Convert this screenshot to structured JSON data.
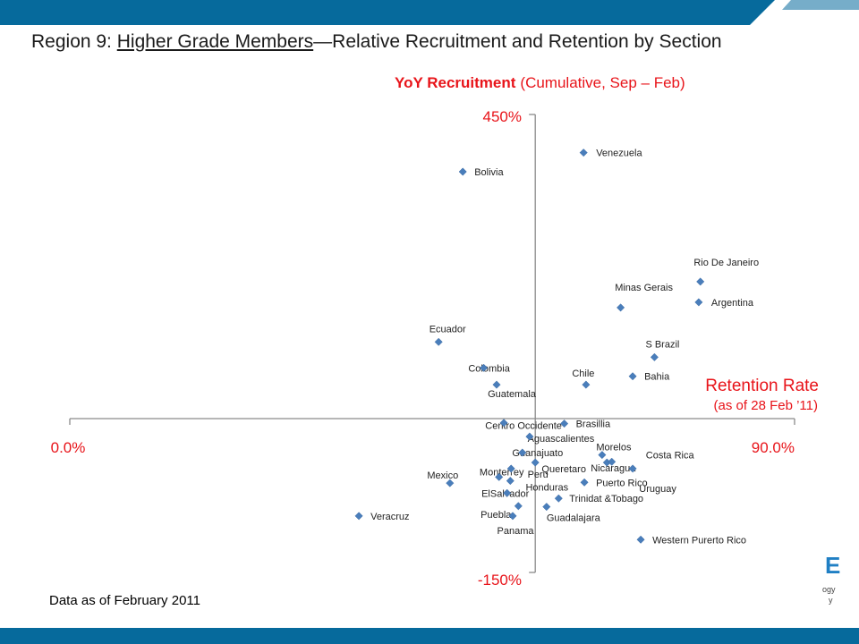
{
  "slide": {
    "title": {
      "prefix": "Region 9: ",
      "underlined": "Higher Grade Members",
      "suffix": "—Relative Recruitment and Retention by Section"
    },
    "footnote": "Data as of February 2011",
    "logo": {
      "mark": "E",
      "line1": "ogy",
      "line2": "y"
    }
  },
  "colors": {
    "banner": "#066a9c",
    "label_red": "#e8141a",
    "marker": "#4a7ebb",
    "axis": "#8a8a8a",
    "text": "#1a1a1a",
    "logo": "#1f7fc4"
  },
  "chart_data": {
    "type": "scatter",
    "xlabel": "Retention Rate",
    "xlabel_note": "(as of 28 Feb ’11)",
    "ylabel": "YoY Recruitment",
    "ylabel_note": "(Cumulative, Sep – Feb)",
    "xlim": [
      0,
      90
    ],
    "ylim": [
      -150,
      450
    ],
    "x_tick_labels": [
      "0.0%",
      "90.0%"
    ],
    "y_tick_labels": [
      "-150%",
      "450%"
    ],
    "axes_cross": {
      "x": 57.8,
      "y": 51.6
    },
    "grid": false,
    "points": [
      {
        "label": "Venezuela",
        "x": 63.8,
        "y": 400
      },
      {
        "label": "Bolivia",
        "x": 48.8,
        "y": 375
      },
      {
        "label": "Rio De Janeiro",
        "x": 78.3,
        "y": 231
      },
      {
        "label": "Argentina",
        "x": 78.1,
        "y": 204
      },
      {
        "label": "Minas Gerais",
        "x": 68.4,
        "y": 197
      },
      {
        "label": "Ecuador",
        "x": 45.8,
        "y": 152
      },
      {
        "label": "S Brazil",
        "x": 72.6,
        "y": 132
      },
      {
        "label": "Bahia",
        "x": 69.9,
        "y": 107
      },
      {
        "label": "Colombia",
        "x": 51.4,
        "y": 118
      },
      {
        "label": "Chile",
        "x": 64.1,
        "y": 96
      },
      {
        "label": "Guatemala",
        "x": 53.0,
        "y": 96
      },
      {
        "label": "Brasillia",
        "x": 61.4,
        "y": 45
      },
      {
        "label": "Centro Occidente",
        "x": 53.9,
        "y": 46
      },
      {
        "label": "Aguascalientes",
        "x": 57.1,
        "y": 28
      },
      {
        "label": "Guanajuato",
        "x": 56.2,
        "y": 7
      },
      {
        "label": "Queretaro",
        "x": 57.8,
        "y": -6
      },
      {
        "label": "Monterrey",
        "x": 53.3,
        "y": -25
      },
      {
        "label": "Peru",
        "x": 54.8,
        "y": -14
      },
      {
        "label": "Honduras",
        "x": 54.7,
        "y": -30
      },
      {
        "label": "ElSalvador",
        "x": 54.3,
        "y": -46
      },
      {
        "label": "Mexico",
        "x": 47.2,
        "y": -33
      },
      {
        "label": "Veracruz",
        "x": 35.9,
        "y": -76
      },
      {
        "label": "Puebla",
        "x": 55.7,
        "y": -63
      },
      {
        "label": "Panama",
        "x": 55.0,
        "y": -76
      },
      {
        "label": "Guadalajara",
        "x": 59.2,
        "y": -64
      },
      {
        "label": "Trinidat &Tobago",
        "x": 60.7,
        "y": -53
      },
      {
        "label": "Puerto Rico",
        "x": 63.9,
        "y": -32
      },
      {
        "label": "Nicaragua",
        "x": 66.7,
        "y": -6
      },
      {
        "label": "Morelos",
        "x": 66.1,
        "y": 4
      },
      {
        "label": "Costa Rica",
        "x": 67.3,
        "y": -5
      },
      {
        "label": "Uruguay",
        "x": 69.9,
        "y": -14
      },
      {
        "label": "Western Purerto Rico",
        "x": 70.9,
        "y": -107
      }
    ]
  }
}
